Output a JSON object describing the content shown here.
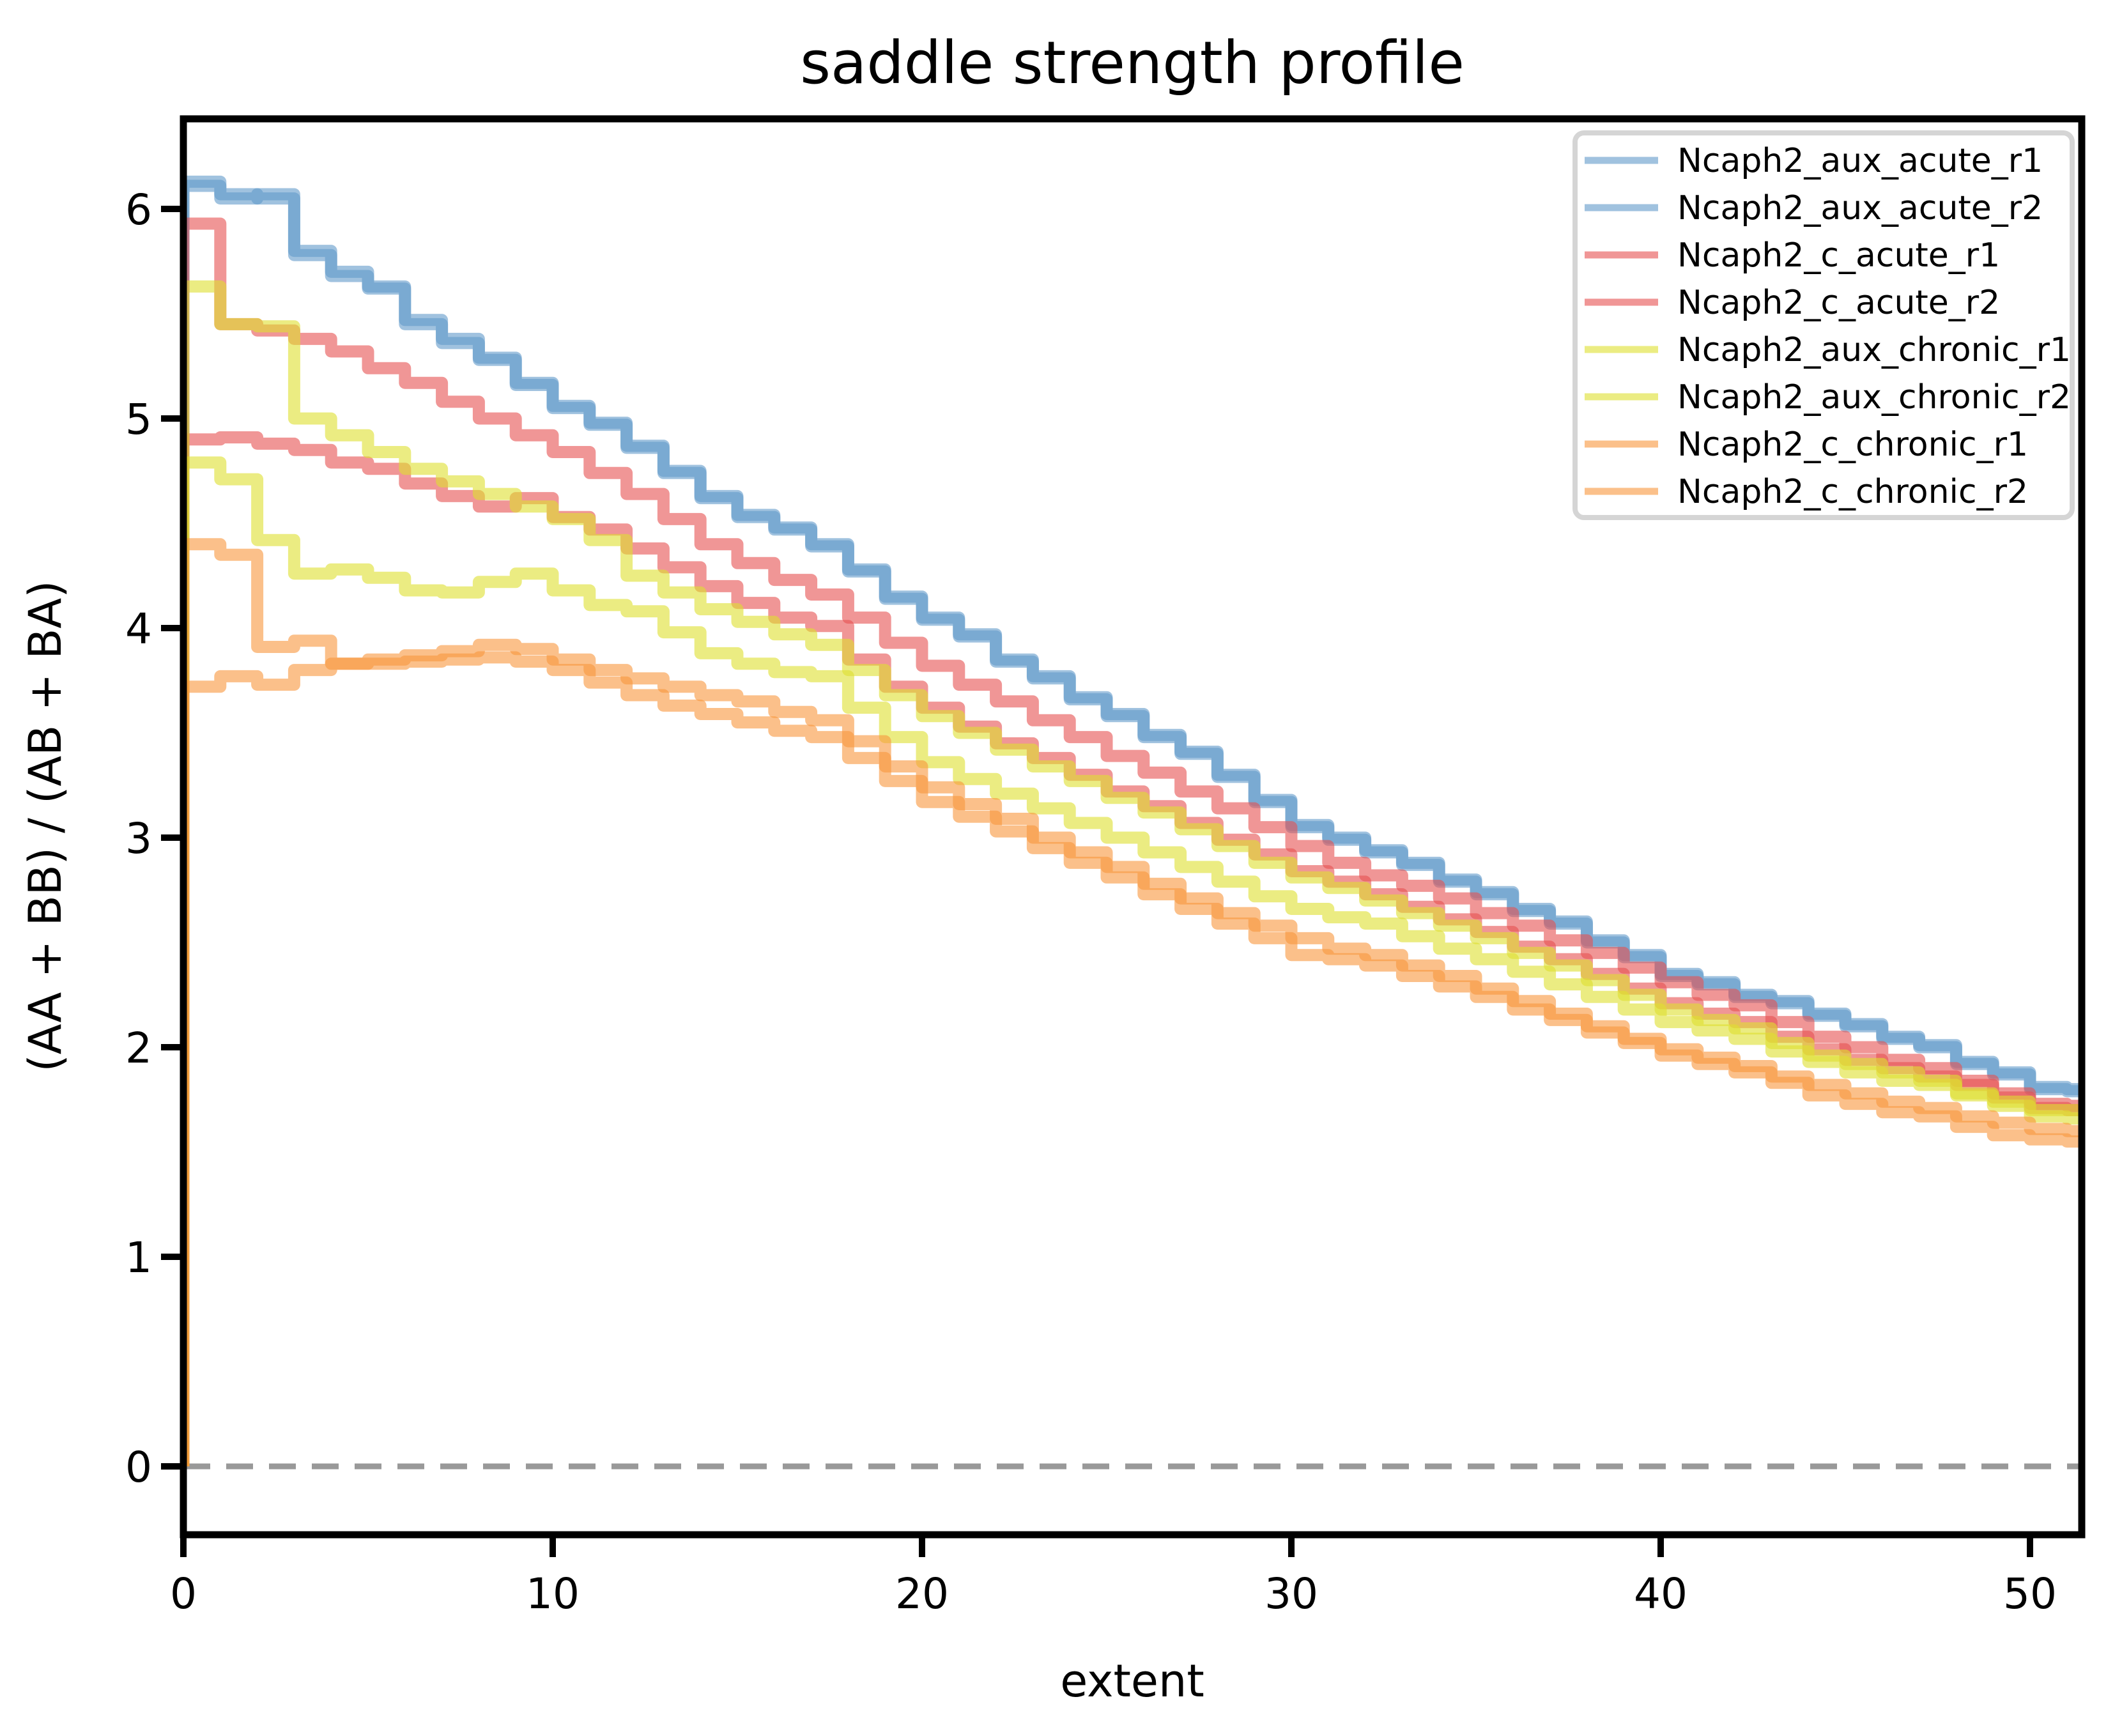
{
  "figure": {
    "background": "#ffffff",
    "spine_color": "#000000"
  },
  "chart_data": {
    "type": "line",
    "subtype": "step-post-stairs",
    "title": "saddle strength profile",
    "xlabel": "extent",
    "ylabel": "(AA + BB) / (AB + BA)",
    "xlim": [
      0,
      51.45
    ],
    "ylim": [
      -0.33,
      6.45
    ],
    "x_ticks": [
      0,
      10,
      20,
      30,
      40,
      50
    ],
    "y_ticks": [
      0,
      1,
      2,
      3,
      4,
      5,
      6
    ],
    "grid": false,
    "legend_position": "upper right",
    "line_opacity": 0.6,
    "zero_line": {
      "y": 0,
      "style": "dashed",
      "color": "#999999"
    },
    "x": "step bins at integer extents 0..51, each value spans extent i to i+1",
    "series": [
      {
        "name": "Ncaph2_aux_acute_r1",
        "color": "#6099c9",
        "legend_color": "#a0c2df",
        "values": [
          6.13,
          6.05,
          6.07,
          5.78,
          5.7,
          5.62,
          5.45,
          5.38,
          5.28,
          5.16,
          5.06,
          4.97,
          4.87,
          4.74,
          4.62,
          4.54,
          4.48,
          4.39,
          4.28,
          4.14,
          4.05,
          3.96,
          3.84,
          3.76,
          3.67,
          3.58,
          3.49,
          3.4,
          3.3,
          3.17,
          3.06,
          2.99,
          2.94,
          2.87,
          2.8,
          2.73,
          2.66,
          2.59,
          2.51,
          2.43,
          2.35,
          2.3,
          2.25,
          2.21,
          2.16,
          2.1,
          2.05,
          2.0,
          1.93,
          1.87,
          1.8,
          1.79
        ]
      },
      {
        "name": "Ncaph2_aux_acute_r2",
        "color": "#6099c9",
        "legend_color": "#a0c2df",
        "values": [
          6.11,
          6.07,
          6.05,
          5.8,
          5.68,
          5.63,
          5.47,
          5.36,
          5.29,
          5.17,
          5.05,
          4.98,
          4.86,
          4.75,
          4.63,
          4.53,
          4.47,
          4.4,
          4.27,
          4.15,
          4.04,
          3.97,
          3.85,
          3.77,
          3.66,
          3.59,
          3.48,
          3.41,
          3.29,
          3.18,
          3.05,
          3.0,
          2.93,
          2.88,
          2.79,
          2.74,
          2.65,
          2.6,
          2.5,
          2.44,
          2.34,
          2.31,
          2.24,
          2.22,
          2.15,
          2.11,
          2.04,
          2.01,
          1.92,
          1.88,
          1.81,
          1.8
        ]
      },
      {
        "name": "Ncaph2_c_acute_r1",
        "color": "#e65050",
        "legend_color": "#f09696",
        "values": [
          5.93,
          5.45,
          5.42,
          5.38,
          5.32,
          5.24,
          5.17,
          5.08,
          5.0,
          4.92,
          4.84,
          4.74,
          4.64,
          4.52,
          4.4,
          4.31,
          4.23,
          4.16,
          4.05,
          3.93,
          3.82,
          3.73,
          3.65,
          3.56,
          3.48,
          3.39,
          3.31,
          3.22,
          3.14,
          3.05,
          2.96,
          2.88,
          2.82,
          2.77,
          2.71,
          2.64,
          2.58,
          2.51,
          2.45,
          2.38,
          2.31,
          2.25,
          2.2,
          2.12,
          2.05,
          2.0,
          1.94,
          1.9,
          1.84,
          1.78,
          1.73,
          1.72
        ]
      },
      {
        "name": "Ncaph2_c_acute_r2",
        "color": "#e65050",
        "legend_color": "#f09696",
        "values": [
          4.9,
          4.91,
          4.88,
          4.85,
          4.79,
          4.76,
          4.69,
          4.63,
          4.58,
          4.62,
          4.53,
          4.47,
          4.38,
          4.29,
          4.2,
          4.12,
          4.05,
          4.01,
          3.85,
          3.72,
          3.62,
          3.53,
          3.45,
          3.38,
          3.3,
          3.22,
          3.15,
          3.07,
          2.99,
          2.92,
          2.84,
          2.79,
          2.73,
          2.67,
          2.61,
          2.55,
          2.48,
          2.42,
          2.35,
          2.28,
          2.21,
          2.16,
          2.12,
          2.05,
          1.99,
          1.94,
          1.9,
          1.86,
          1.82,
          1.76,
          1.71,
          1.7
        ]
      },
      {
        "name": "Ncaph2_aux_chronic_r1",
        "color": "#dedf2e",
        "legend_color": "#ebec82",
        "values": [
          5.63,
          5.45,
          5.44,
          5.0,
          4.92,
          4.84,
          4.76,
          4.7,
          4.64,
          4.58,
          4.52,
          4.42,
          4.25,
          4.17,
          4.09,
          4.03,
          3.97,
          3.92,
          3.8,
          3.68,
          3.58,
          3.5,
          3.42,
          3.34,
          3.27,
          3.19,
          3.12,
          3.04,
          2.96,
          2.88,
          2.81,
          2.76,
          2.7,
          2.64,
          2.58,
          2.52,
          2.45,
          2.39,
          2.32,
          2.25,
          2.18,
          2.13,
          2.09,
          2.02,
          1.96,
          1.92,
          1.88,
          1.84,
          1.78,
          1.74,
          1.7,
          1.7
        ]
      },
      {
        "name": "Ncaph2_aux_chronic_r2",
        "color": "#dedf2e",
        "legend_color": "#ebec82",
        "values": [
          4.79,
          4.71,
          4.42,
          4.26,
          4.28,
          4.24,
          4.18,
          4.17,
          4.22,
          4.26,
          4.18,
          4.11,
          4.08,
          3.98,
          3.88,
          3.83,
          3.79,
          3.77,
          3.62,
          3.48,
          3.36,
          3.28,
          3.21,
          3.14,
          3.07,
          3.0,
          2.93,
          2.86,
          2.79,
          2.72,
          2.66,
          2.62,
          2.59,
          2.53,
          2.47,
          2.42,
          2.36,
          2.3,
          2.24,
          2.18,
          2.12,
          2.08,
          2.04,
          1.98,
          1.93,
          1.88,
          1.84,
          1.82,
          1.77,
          1.72,
          1.67,
          1.66
        ]
      },
      {
        "name": "Ncaph2_c_chronic_r1",
        "color": "#f9963c",
        "legend_color": "#fbc08a",
        "values": [
          4.4,
          4.35,
          3.91,
          3.94,
          3.83,
          3.85,
          3.87,
          3.89,
          3.92,
          3.9,
          3.85,
          3.8,
          3.76,
          3.72,
          3.68,
          3.65,
          3.6,
          3.56,
          3.46,
          3.34,
          3.24,
          3.16,
          3.09,
          3.0,
          2.93,
          2.86,
          2.78,
          2.71,
          2.64,
          2.58,
          2.52,
          2.47,
          2.44,
          2.39,
          2.34,
          2.28,
          2.22,
          2.16,
          2.1,
          2.04,
          1.99,
          1.95,
          1.91,
          1.86,
          1.82,
          1.78,
          1.74,
          1.71,
          1.67,
          1.64,
          1.61,
          1.6
        ]
      },
      {
        "name": "Ncaph2_c_chronic_r2",
        "color": "#f9963c",
        "legend_color": "#fbc08a",
        "values": [
          3.72,
          3.77,
          3.73,
          3.8,
          3.83,
          3.83,
          3.84,
          3.85,
          3.86,
          3.84,
          3.8,
          3.74,
          3.68,
          3.63,
          3.59,
          3.55,
          3.51,
          3.48,
          3.38,
          3.27,
          3.17,
          3.1,
          3.03,
          2.95,
          2.88,
          2.81,
          2.73,
          2.66,
          2.59,
          2.52,
          2.44,
          2.42,
          2.39,
          2.34,
          2.29,
          2.24,
          2.18,
          2.13,
          2.07,
          2.02,
          1.96,
          1.92,
          1.88,
          1.83,
          1.77,
          1.73,
          1.69,
          1.67,
          1.62,
          1.58,
          1.56,
          1.55
        ]
      }
    ]
  }
}
